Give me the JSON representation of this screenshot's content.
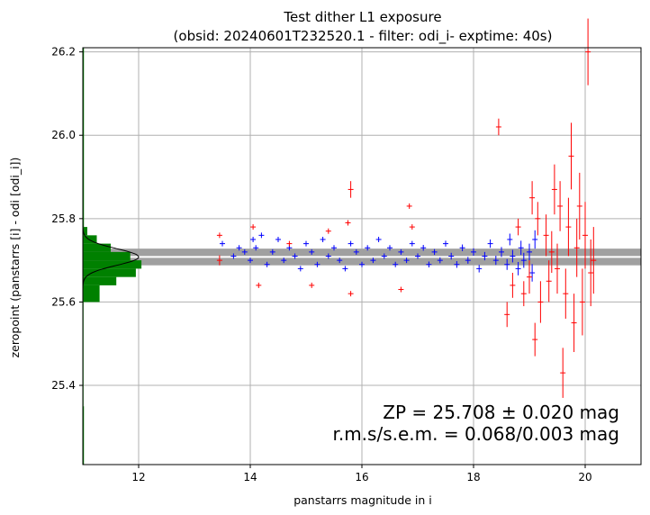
{
  "chart_data": {
    "type": "scatter",
    "title": "Test dither L1 exposure",
    "subtitle": "(obsid: 20240601T232520.1 - filter: odi_i- exptime: 40s)",
    "xlabel": "panstarrs magnitude in i",
    "ylabel": "zeropoint (panstarrs [i] - odi [odi_i])",
    "xlim": [
      11.0,
      21.0
    ],
    "ylim": [
      25.21,
      26.21
    ],
    "x_ticks": [
      "12",
      "14",
      "16",
      "18",
      "20"
    ],
    "y_ticks": [
      "25.4",
      "25.6",
      "25.8",
      "26.0",
      "26.2"
    ],
    "grid": true,
    "zeropoint": {
      "value": 25.708,
      "band_halfwidth": 0.02
    },
    "annotation": {
      "line1": "ZP = 25.708 ± 0.020 mag",
      "line2": "r.m.s/s.e.m. = 0.068/0.003 mag"
    },
    "colors": {
      "accepted": "#0000ff",
      "rejected": "#ff0000",
      "histogram": "#008000",
      "band": "#a0a0a0",
      "zp_line": "#ffffff",
      "gaussian": "#000000",
      "grid": "#b0b0b0"
    },
    "series": [
      {
        "kind": "accepted",
        "points": [
          [
            13.5,
            25.74,
            0.005
          ],
          [
            13.7,
            25.71,
            0.005
          ],
          [
            13.8,
            25.73,
            0.005
          ],
          [
            13.9,
            25.72,
            0.005
          ],
          [
            14.0,
            25.7,
            0.005
          ],
          [
            14.05,
            25.75,
            0.005
          ],
          [
            14.1,
            25.73,
            0.005
          ],
          [
            14.2,
            25.76,
            0.005
          ],
          [
            14.3,
            25.69,
            0.005
          ],
          [
            14.4,
            25.72,
            0.005
          ],
          [
            14.5,
            25.75,
            0.005
          ],
          [
            14.6,
            25.7,
            0.005
          ],
          [
            14.7,
            25.73,
            0.005
          ],
          [
            14.8,
            25.71,
            0.005
          ],
          [
            14.9,
            25.68,
            0.005
          ],
          [
            15.0,
            25.74,
            0.005
          ],
          [
            15.1,
            25.72,
            0.005
          ],
          [
            15.2,
            25.69,
            0.005
          ],
          [
            15.3,
            25.75,
            0.005
          ],
          [
            15.4,
            25.71,
            0.005
          ],
          [
            15.5,
            25.73,
            0.005
          ],
          [
            15.6,
            25.7,
            0.005
          ],
          [
            15.7,
            25.68,
            0.005
          ],
          [
            15.8,
            25.74,
            0.006
          ],
          [
            15.9,
            25.72,
            0.006
          ],
          [
            16.0,
            25.69,
            0.006
          ],
          [
            16.1,
            25.73,
            0.006
          ],
          [
            16.2,
            25.7,
            0.006
          ],
          [
            16.3,
            25.75,
            0.006
          ],
          [
            16.4,
            25.71,
            0.006
          ],
          [
            16.5,
            25.73,
            0.006
          ],
          [
            16.6,
            25.69,
            0.006
          ],
          [
            16.7,
            25.72,
            0.006
          ],
          [
            16.8,
            25.7,
            0.006
          ],
          [
            16.9,
            25.74,
            0.006
          ],
          [
            17.0,
            25.71,
            0.006
          ],
          [
            17.1,
            25.73,
            0.007
          ],
          [
            17.2,
            25.69,
            0.007
          ],
          [
            17.3,
            25.72,
            0.007
          ],
          [
            17.4,
            25.7,
            0.007
          ],
          [
            17.5,
            25.74,
            0.007
          ],
          [
            17.6,
            25.71,
            0.008
          ],
          [
            17.7,
            25.69,
            0.008
          ],
          [
            17.8,
            25.73,
            0.008
          ],
          [
            17.9,
            25.7,
            0.008
          ],
          [
            18.0,
            25.72,
            0.009
          ],
          [
            18.1,
            25.68,
            0.009
          ],
          [
            18.2,
            25.71,
            0.01
          ],
          [
            18.3,
            25.74,
            0.01
          ],
          [
            18.4,
            25.7,
            0.011
          ],
          [
            18.5,
            25.72,
            0.012
          ],
          [
            18.6,
            25.69,
            0.013
          ],
          [
            18.65,
            25.75,
            0.014
          ],
          [
            18.7,
            25.71,
            0.015
          ],
          [
            18.8,
            25.68,
            0.016
          ],
          [
            18.85,
            25.73,
            0.017
          ],
          [
            18.9,
            25.7,
            0.018
          ],
          [
            19.0,
            25.72,
            0.02
          ],
          [
            19.05,
            25.67,
            0.021
          ],
          [
            19.1,
            25.75,
            0.022
          ]
        ]
      },
      {
        "kind": "rejected",
        "points": [
          [
            13.45,
            25.76,
            0.005
          ],
          [
            13.45,
            25.7,
            0.012
          ],
          [
            14.05,
            25.78,
            0.005
          ],
          [
            14.15,
            25.64,
            0.005
          ],
          [
            14.7,
            25.74,
            0.005
          ],
          [
            15.1,
            25.64,
            0.005
          ],
          [
            15.4,
            25.77,
            0.005
          ],
          [
            15.75,
            25.79,
            0.005
          ],
          [
            15.8,
            25.62,
            0.005
          ],
          [
            15.8,
            25.87,
            0.02
          ],
          [
            16.7,
            25.63,
            0.005
          ],
          [
            16.85,
            25.83,
            0.005
          ],
          [
            16.9,
            25.78,
            0.005
          ],
          [
            18.45,
            26.02,
            0.02
          ],
          [
            18.6,
            25.57,
            0.03
          ],
          [
            18.7,
            25.64,
            0.03
          ],
          [
            18.8,
            25.78,
            0.02
          ],
          [
            18.9,
            25.62,
            0.03
          ],
          [
            19.0,
            25.66,
            0.04
          ],
          [
            19.05,
            25.85,
            0.04
          ],
          [
            19.1,
            25.51,
            0.04
          ],
          [
            19.15,
            25.8,
            0.04
          ],
          [
            19.2,
            25.6,
            0.05
          ],
          [
            19.3,
            25.76,
            0.05
          ],
          [
            19.35,
            25.65,
            0.05
          ],
          [
            19.4,
            25.72,
            0.05
          ],
          [
            19.45,
            25.87,
            0.06
          ],
          [
            19.5,
            25.68,
            0.06
          ],
          [
            19.55,
            25.83,
            0.06
          ],
          [
            19.6,
            25.43,
            0.06
          ],
          [
            19.65,
            25.62,
            0.06
          ],
          [
            19.7,
            25.78,
            0.07
          ],
          [
            19.75,
            25.95,
            0.08
          ],
          [
            19.8,
            25.55,
            0.07
          ],
          [
            19.85,
            25.73,
            0.07
          ],
          [
            19.9,
            25.83,
            0.08
          ],
          [
            19.95,
            25.6,
            0.08
          ],
          [
            20.0,
            25.76,
            0.08
          ],
          [
            20.05,
            26.2,
            0.08
          ],
          [
            20.1,
            25.67,
            0.08
          ],
          [
            20.15,
            25.7,
            0.08
          ]
        ]
      }
    ],
    "histogram": {
      "bin_edges": [
        25.21,
        25.35,
        25.6,
        25.64,
        25.66,
        25.68,
        25.7,
        25.72,
        25.74,
        25.76,
        25.78,
        26.21
      ],
      "bar_right_x": [
        11.02,
        11.0,
        11.3,
        11.6,
        11.95,
        12.05,
        11.85,
        11.5,
        11.25,
        11.08,
        11.02
      ]
    }
  }
}
